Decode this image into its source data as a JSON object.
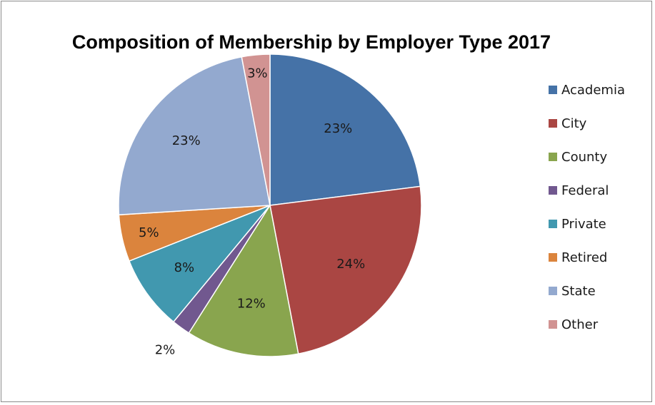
{
  "chart_data": {
    "type": "pie",
    "title": "Composition of Membership by Employer Type 2017",
    "legend_position": "right",
    "categories": [
      "Academia",
      "City",
      "County",
      "Federal",
      "Private",
      "Retired",
      "State",
      "Other"
    ],
    "values": [
      23,
      24,
      12,
      2,
      8,
      5,
      23,
      3
    ],
    "labels": [
      "23%",
      "24%",
      "12%",
      "2%",
      "8%",
      "5%",
      "23%",
      "3%"
    ],
    "colors": [
      "#4572a7",
      "#aa4643",
      "#89a54e",
      "#71588f",
      "#4198af",
      "#db843d",
      "#93a9cf",
      "#d19392"
    ]
  }
}
